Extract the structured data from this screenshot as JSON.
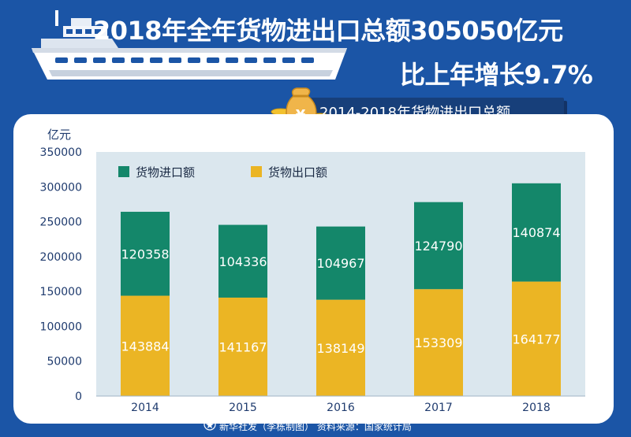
{
  "headline": {
    "line1": "2018年全年货物进出口总额305050亿元",
    "line2": "比上年增长9.7%"
  },
  "subtitle": "2014-2018年货物进出口总额",
  "footer": "新华社发（李栋制图） 资料来源：国家统计局",
  "colors": {
    "background": "#1b55a6",
    "import": "#14876a",
    "export": "#ebb524",
    "plot_bg": "#dbe7ee"
  },
  "chart_data": {
    "type": "bar",
    "stacked": true,
    "unit_label": "亿元",
    "categories": [
      "2014",
      "2015",
      "2016",
      "2017",
      "2018"
    ],
    "series": [
      {
        "name": "货物出口额",
        "values": [
          143884,
          141167,
          138149,
          153309,
          164177
        ],
        "color": "#ebb524"
      },
      {
        "name": "货物进口额",
        "values": [
          120358,
          104336,
          104967,
          124790,
          140874
        ],
        "color": "#14876a"
      }
    ],
    "legend": [
      "货物进口额",
      "货物出口额"
    ],
    "legend_placement": "top-left",
    "ylim": [
      0,
      350000
    ],
    "yticks": [
      "0",
      "50000",
      "100000",
      "150000",
      "200000",
      "250000",
      "300000",
      "350000"
    ],
    "grid": false
  }
}
